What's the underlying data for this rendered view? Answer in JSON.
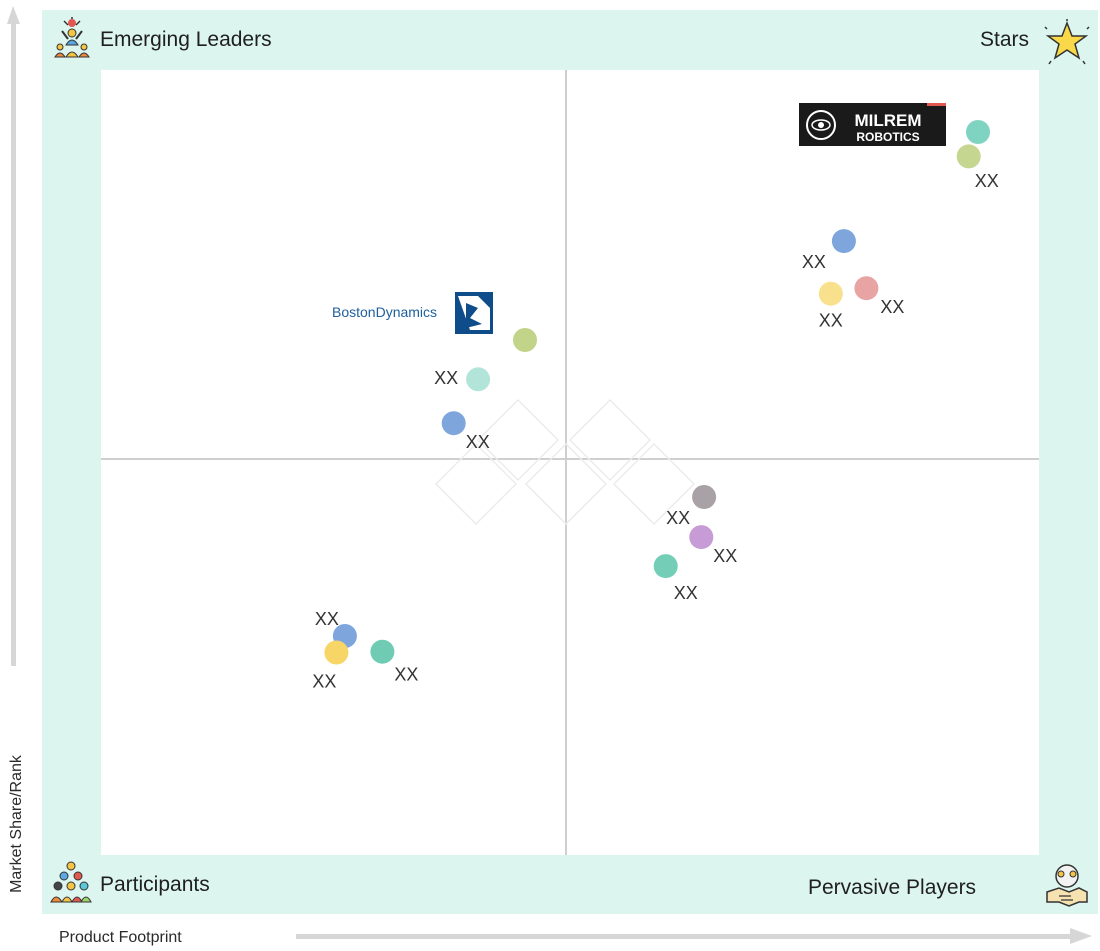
{
  "chart_data": {
    "type": "scatter",
    "xlabel": "Product Footprint",
    "ylabel": "Market Share/Rank",
    "xlim": [
      0,
      100
    ],
    "ylim": [
      0,
      100
    ],
    "grid": false,
    "quadrants": {
      "top_left": "Emerging Leaders",
      "top_right": "Stars",
      "bottom_left": "Participants",
      "bottom_right": "Pervasive Players"
    },
    "points": [
      {
        "x": 93.5,
        "y": 92.1,
        "color": "#7fd3c1",
        "label": ""
      },
      {
        "x": 92.5,
        "y": 89.0,
        "color": "#c4d68f",
        "label": "XX"
      },
      {
        "x": 79.2,
        "y": 78.2,
        "color": "#7ea6dc",
        "label": "XX"
      },
      {
        "x": 81.6,
        "y": 72.2,
        "color": "#e8a3a3",
        "label": "XX"
      },
      {
        "x": 77.8,
        "y": 71.5,
        "color": "#f8e08c",
        "label": "XX"
      },
      {
        "x": 45.2,
        "y": 65.6,
        "color": "#c2d48a",
        "label": ""
      },
      {
        "x": 40.2,
        "y": 60.6,
        "color": "#b3e4da",
        "label": "XX"
      },
      {
        "x": 37.6,
        "y": 55.0,
        "color": "#7ea6dc",
        "label": "XX"
      },
      {
        "x": 64.3,
        "y": 45.6,
        "color": "#a8a2a6",
        "label": "XX"
      },
      {
        "x": 64.0,
        "y": 40.5,
        "color": "#c79bd6",
        "label": "XX"
      },
      {
        "x": 60.2,
        "y": 36.8,
        "color": "#74cdb6",
        "label": "XX"
      },
      {
        "x": 26.0,
        "y": 27.9,
        "color": "#7ea6dc",
        "label": "XX"
      },
      {
        "x": 25.1,
        "y": 25.8,
        "color": "#f8d567",
        "label": "XX"
      },
      {
        "x": 30.0,
        "y": 25.9,
        "color": "#6fcbb3",
        "label": "XX"
      }
    ],
    "logos": [
      {
        "name": "milrem-robotics-logo",
        "lines": [
          "MILREM",
          "ROBOTICS"
        ]
      },
      {
        "name": "boston-dynamics-logo",
        "text": "BostonDynamics"
      }
    ]
  },
  "colors": {
    "frame": "#dcf5ef",
    "plot": "#ffffff",
    "divider": "#cfcfcf",
    "axis_arrow": "#d6d6d6"
  }
}
